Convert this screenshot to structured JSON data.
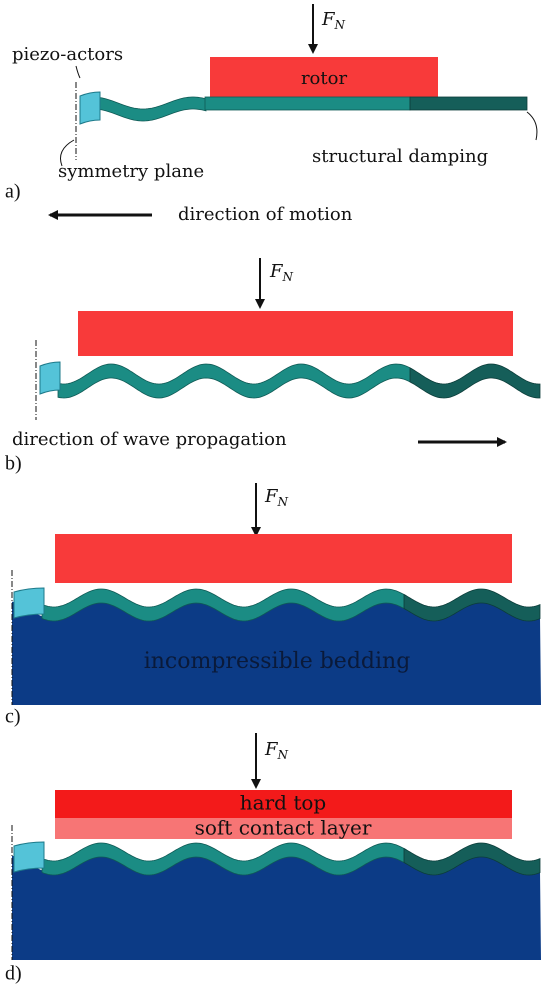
{
  "panel_a": {
    "label": "a)",
    "force": {
      "symbol": "F",
      "subscript": "N"
    },
    "piezo": "piezo-actors",
    "rotor": "rotor",
    "symmetry": "symmetry plane",
    "damping": "structural damping",
    "caption": "direction of motion"
  },
  "panel_b": {
    "label": "b)",
    "force": {
      "symbol": "F",
      "subscript": "N"
    },
    "caption": "direction of wave propagation"
  },
  "panel_c": {
    "label": "c)",
    "force": {
      "symbol": "F",
      "subscript": "N"
    },
    "bedding": "incompressible bedding"
  },
  "panel_d": {
    "label": "d)",
    "force": {
      "symbol": "F",
      "subscript": "N"
    },
    "hard_top": "hard top",
    "soft_layer": "soft contact layer"
  }
}
